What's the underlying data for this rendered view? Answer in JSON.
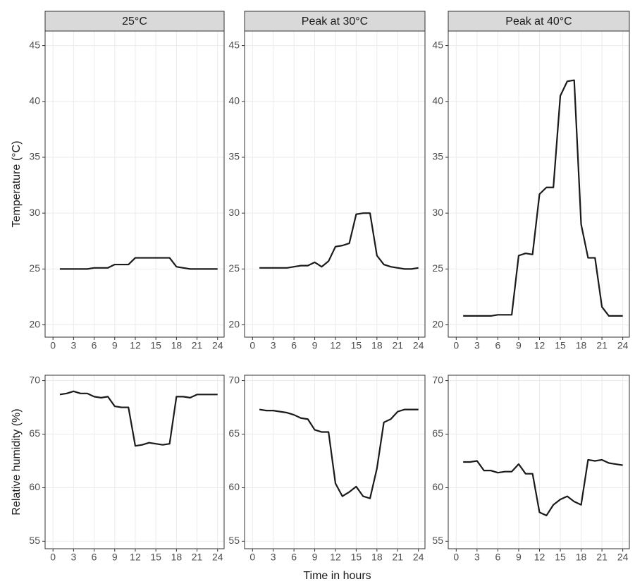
{
  "chart_data": [
    {
      "type": "line",
      "title": "25°C",
      "ylabel": "Temperature (°C)",
      "x": [
        1,
        2,
        3,
        4,
        5,
        6,
        7,
        8,
        9,
        10,
        11,
        12,
        13,
        14,
        15,
        16,
        17,
        18,
        19,
        20,
        21,
        22,
        23,
        24
      ],
      "series": [
        {
          "color": "#1a1a1a",
          "values": [
            25,
            25,
            25,
            25,
            25,
            25.1,
            25.1,
            25.1,
            25.4,
            25.4,
            25.4,
            26,
            26,
            26,
            26,
            26,
            26,
            25.2,
            25.1,
            25,
            25,
            25,
            25,
            25
          ]
        }
      ],
      "xlim": [
        -1.15,
        24.95
      ],
      "xticks": [
        0,
        3,
        6,
        9,
        12,
        15,
        18,
        21,
        24
      ],
      "ylim": [
        18.9,
        46.3
      ],
      "yticks": [
        20,
        25,
        30,
        35,
        40,
        45
      ],
      "grid": true
    },
    {
      "type": "line",
      "title": "Peak at 30°C",
      "x": [
        1,
        2,
        3,
        4,
        5,
        6,
        7,
        8,
        9,
        10,
        11,
        12,
        13,
        14,
        15,
        16,
        17,
        18,
        19,
        20,
        21,
        22,
        23,
        24
      ],
      "series": [
        {
          "color": "#1a1a1a",
          "values": [
            25.1,
            25.1,
            25.1,
            25.1,
            25.1,
            25.2,
            25.3,
            25.3,
            25.6,
            25.2,
            25.7,
            27,
            27.1,
            27.3,
            29.9,
            30,
            30,
            26.2,
            25.4,
            25.2,
            25.1,
            25,
            25,
            25.1
          ]
        }
      ],
      "xlim": [
        -1.15,
        24.95
      ],
      "xticks": [
        0,
        3,
        6,
        9,
        12,
        15,
        18,
        21,
        24
      ],
      "ylim": [
        18.9,
        46.3
      ],
      "yticks": [
        20,
        25,
        30,
        35,
        40,
        45
      ],
      "grid": true
    },
    {
      "type": "line",
      "title": "Peak at 40°C",
      "x": [
        1,
        2,
        3,
        4,
        5,
        6,
        7,
        8,
        9,
        10,
        11,
        12,
        13,
        14,
        15,
        16,
        17,
        18,
        19,
        20,
        21,
        22,
        23,
        24
      ],
      "series": [
        {
          "color": "#1a1a1a",
          "values": [
            20.8,
            20.8,
            20.8,
            20.8,
            20.8,
            20.9,
            20.9,
            20.9,
            26.2,
            26.4,
            26.3,
            31.7,
            32.3,
            32.3,
            40.5,
            41.8,
            41.9,
            29,
            26,
            26,
            21.6,
            20.8,
            20.8,
            20.8
          ]
        }
      ],
      "xlim": [
        -1.15,
        24.95
      ],
      "xticks": [
        0,
        3,
        6,
        9,
        12,
        15,
        18,
        21,
        24
      ],
      "ylim": [
        18.9,
        46.3
      ],
      "yticks": [
        20,
        25,
        30,
        35,
        40,
        45
      ],
      "grid": true
    },
    {
      "type": "line",
      "ylabel": "Relative humidity (%)",
      "x": [
        1,
        2,
        3,
        4,
        5,
        6,
        7,
        8,
        9,
        10,
        11,
        12,
        13,
        14,
        15,
        16,
        17,
        18,
        19,
        20,
        21,
        22,
        23,
        24
      ],
      "series": [
        {
          "color": "#1a1a1a",
          "values": [
            68.7,
            68.8,
            69,
            68.8,
            68.8,
            68.5,
            68.4,
            68.5,
            67.6,
            67.5,
            67.5,
            63.9,
            64,
            64.2,
            64.1,
            64,
            64.1,
            68.5,
            68.5,
            68.4,
            68.7,
            68.7,
            68.7,
            68.7
          ]
        }
      ],
      "xlim": [
        -1.15,
        24.95
      ],
      "xticks": [
        0,
        3,
        6,
        9,
        12,
        15,
        18,
        21,
        24
      ],
      "ylim": [
        54.3,
        70.5
      ],
      "yticks": [
        55,
        60,
        65,
        70
      ],
      "grid": true
    },
    {
      "type": "line",
      "xlabel": "Time in hours",
      "x": [
        1,
        2,
        3,
        4,
        5,
        6,
        7,
        8,
        9,
        10,
        11,
        12,
        13,
        14,
        15,
        16,
        17,
        18,
        19,
        20,
        21,
        22,
        23,
        24
      ],
      "series": [
        {
          "color": "#1a1a1a",
          "values": [
            67.3,
            67.2,
            67.2,
            67.1,
            67,
            66.8,
            66.5,
            66.4,
            65.4,
            65.2,
            65.2,
            60.4,
            59.2,
            59.6,
            60.1,
            59.2,
            59,
            61.8,
            66.1,
            66.4,
            67.1,
            67.3,
            67.3,
            67.3
          ]
        }
      ],
      "xlim": [
        -1.15,
        24.95
      ],
      "xticks": [
        0,
        3,
        6,
        9,
        12,
        15,
        18,
        21,
        24
      ],
      "ylim": [
        54.3,
        70.5
      ],
      "yticks": [
        55,
        60,
        65,
        70
      ],
      "grid": true
    },
    {
      "type": "line",
      "x": [
        1,
        2,
        3,
        4,
        5,
        6,
        7,
        8,
        9,
        10,
        11,
        12,
        13,
        14,
        15,
        16,
        17,
        18,
        19,
        20,
        21,
        22,
        23,
        24
      ],
      "series": [
        {
          "color": "#1a1a1a",
          "values": [
            62.4,
            62.4,
            62.5,
            61.6,
            61.6,
            61.4,
            61.5,
            61.5,
            62.2,
            61.3,
            61.3,
            57.7,
            57.4,
            58.4,
            58.9,
            59.2,
            58.7,
            58.4,
            62.6,
            62.5,
            62.6,
            62.3,
            62.2,
            62.1
          ]
        }
      ],
      "xlim": [
        -1.15,
        24.95
      ],
      "xticks": [
        0,
        3,
        6,
        9,
        12,
        15,
        18,
        21,
        24
      ],
      "ylim": [
        54.3,
        70.5
      ],
      "yticks": [
        55,
        60,
        65,
        70
      ],
      "grid": true
    }
  ]
}
